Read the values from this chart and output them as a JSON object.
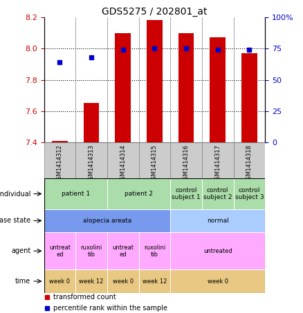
{
  "title": "GDS5275 / 202801_at",
  "samples": [
    "GSM1414312",
    "GSM1414313",
    "GSM1414314",
    "GSM1414315",
    "GSM1414316",
    "GSM1414317",
    "GSM1414318"
  ],
  "transformed_count": [
    7.41,
    7.65,
    8.1,
    8.18,
    8.1,
    8.07,
    7.97
  ],
  "percentile_rank": [
    64,
    68,
    74,
    75,
    75,
    74,
    74
  ],
  "ylim_left": [
    7.4,
    8.2
  ],
  "ylim_right": [
    0,
    100
  ],
  "yticks_left": [
    7.4,
    7.6,
    7.8,
    8.0,
    8.2
  ],
  "yticks_right": [
    0,
    25,
    50,
    75,
    100
  ],
  "ytick_labels_right": [
    "0",
    "25",
    "50",
    "75",
    "100%"
  ],
  "bar_color": "#cc0000",
  "dot_color": "#0000cc",
  "bar_width": 0.5,
  "individual_labels": [
    {
      "text": "patient 1",
      "span": [
        0,
        2
      ],
      "color": "#aaddaa"
    },
    {
      "text": "patient 2",
      "span": [
        2,
        4
      ],
      "color": "#aaddaa"
    },
    {
      "text": "control\nsubject 1",
      "span": [
        4,
        5
      ],
      "color": "#aaddaa"
    },
    {
      "text": "control\nsubject 2",
      "span": [
        5,
        6
      ],
      "color": "#aaddaa"
    },
    {
      "text": "control\nsubject 3",
      "span": [
        6,
        7
      ],
      "color": "#aaddaa"
    }
  ],
  "disease_labels": [
    {
      "text": "alopecia areata",
      "span": [
        0,
        4
      ],
      "color": "#7799ee"
    },
    {
      "text": "normal",
      "span": [
        4,
        7
      ],
      "color": "#aaccff"
    }
  ],
  "agent_labels": [
    {
      "text": "untreat\ned",
      "span": [
        0,
        1
      ],
      "color": "#ffaaff"
    },
    {
      "text": "ruxolini\ntib",
      "span": [
        1,
        2
      ],
      "color": "#ffaaff"
    },
    {
      "text": "untreat\ned",
      "span": [
        2,
        3
      ],
      "color": "#ffaaff"
    },
    {
      "text": "ruxolini\ntib",
      "span": [
        3,
        4
      ],
      "color": "#ffaaff"
    },
    {
      "text": "untreated",
      "span": [
        4,
        7
      ],
      "color": "#ffaaff"
    }
  ],
  "time_labels": [
    {
      "text": "week 0",
      "span": [
        0,
        1
      ],
      "color": "#e8c882"
    },
    {
      "text": "week 12",
      "span": [
        1,
        2
      ],
      "color": "#e8c882"
    },
    {
      "text": "week 0",
      "span": [
        2,
        3
      ],
      "color": "#e8c882"
    },
    {
      "text": "week 12",
      "span": [
        3,
        4
      ],
      "color": "#e8c882"
    },
    {
      "text": "week 0",
      "span": [
        4,
        7
      ],
      "color": "#e8c882"
    }
  ],
  "row_labels": [
    "individual",
    "disease state",
    "agent",
    "time"
  ],
  "legend_items": [
    {
      "color": "#cc0000",
      "label": "transformed count"
    },
    {
      "color": "#0000cc",
      "label": "percentile rank within the sample"
    }
  ],
  "bg_color": "#ffffff",
  "sample_bg_color": "#cccccc",
  "grid_dotted_lines": [
    7.6,
    7.8,
    8.0
  ]
}
